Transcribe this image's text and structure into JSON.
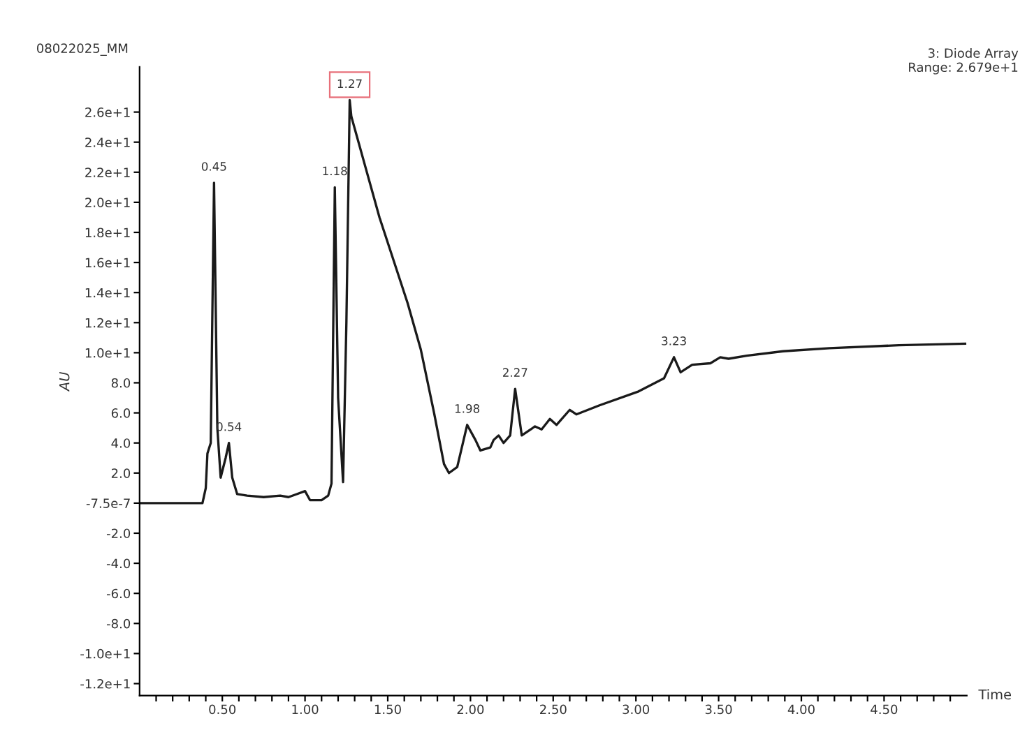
{
  "chart_data": {
    "type": "line",
    "xlabel": "Time",
    "ylabel": "AU",
    "annotations": [
      {
        "text": "08022025_MM"
      },
      {
        "text": "3: Diode Array\nRange: 2.679e+1"
      },
      {
        "text": "0.45",
        "x": 0.45,
        "y": 21.3
      },
      {
        "text": "0.54",
        "x": 0.54,
        "y": 4.0
      },
      {
        "text": "1.18",
        "x": 1.18,
        "y": 21.0
      },
      {
        "text": "1.27",
        "x": 1.27,
        "y": 26.8
      },
      {
        "text": "1.98",
        "x": 1.98,
        "y": 5.2
      },
      {
        "text": "2.27",
        "x": 2.27,
        "y": 7.6
      },
      {
        "text": "3.23",
        "x": 3.23,
        "y": 9.7
      }
    ],
    "x": [
      0.0,
      0.38,
      0.4,
      0.41,
      0.43,
      0.45,
      0.47,
      0.49,
      0.52,
      0.54,
      0.56,
      0.59,
      0.65,
      0.75,
      0.85,
      0.9,
      0.95,
      1.0,
      1.03,
      1.1,
      1.14,
      1.16,
      1.18,
      1.2,
      1.23,
      1.25,
      1.27,
      1.28,
      1.45,
      1.62,
      1.7,
      1.78,
      1.84,
      1.87,
      1.92,
      1.98,
      2.03,
      2.06,
      2.12,
      2.14,
      2.17,
      2.2,
      2.24,
      2.27,
      2.31,
      2.39,
      2.43,
      2.48,
      2.52,
      2.6,
      2.64,
      2.78,
      3.01,
      3.17,
      3.23,
      3.27,
      3.34,
      3.45,
      3.51,
      3.56,
      3.67,
      3.89,
      4.17,
      4.59,
      4.99
    ],
    "series": [
      {
        "color": "#1a1a1a",
        "values": [
          0.0,
          0.0,
          1.0,
          3.3,
          4.0,
          21.3,
          5.0,
          1.7,
          3.0,
          4.0,
          1.7,
          0.6,
          0.5,
          0.4,
          0.5,
          0.4,
          0.6,
          0.8,
          0.2,
          0.2,
          0.5,
          1.3,
          21.0,
          7.0,
          1.4,
          12.0,
          26.8,
          25.7,
          19.0,
          13.3,
          10.2,
          6.0,
          2.6,
          2.0,
          2.4,
          5.2,
          4.2,
          3.5,
          3.7,
          4.2,
          4.5,
          4.0,
          4.5,
          7.6,
          4.5,
          5.1,
          4.9,
          5.6,
          5.2,
          6.2,
          5.9,
          6.5,
          7.4,
          8.3,
          9.7,
          8.7,
          9.2,
          9.3,
          9.7,
          9.6,
          9.8,
          10.1,
          10.3,
          10.5,
          10.6
        ]
      }
    ],
    "xlim": [
      0.0,
      5.0
    ],
    "xticks": [
      {
        "value": 0.1,
        "label": null
      },
      {
        "value": 0.2,
        "label": null
      },
      {
        "value": 0.3,
        "label": null
      },
      {
        "value": 0.4,
        "label": null
      },
      {
        "value": 0.5,
        "label": "0.50"
      },
      {
        "value": 0.6,
        "label": null
      },
      {
        "value": 0.7,
        "label": null
      },
      {
        "value": 0.8,
        "label": null
      },
      {
        "value": 0.9,
        "label": null
      },
      {
        "value": 1.0,
        "label": "1.00"
      },
      {
        "value": 1.1,
        "label": null
      },
      {
        "value": 1.2,
        "label": null
      },
      {
        "value": 1.3,
        "label": null
      },
      {
        "value": 1.4,
        "label": null
      },
      {
        "value": 1.5,
        "label": "1.50"
      },
      {
        "value": 1.6,
        "label": null
      },
      {
        "value": 1.7,
        "label": null
      },
      {
        "value": 1.8,
        "label": null
      },
      {
        "value": 1.9,
        "label": null
      },
      {
        "value": 2.0,
        "label": "2.00"
      },
      {
        "value": 2.1,
        "label": null
      },
      {
        "value": 2.2,
        "label": null
      },
      {
        "value": 2.3,
        "label": null
      },
      {
        "value": 2.4,
        "label": null
      },
      {
        "value": 2.5,
        "label": "2.50"
      },
      {
        "value": 2.6,
        "label": null
      },
      {
        "value": 2.7,
        "label": null
      },
      {
        "value": 2.8,
        "label": null
      },
      {
        "value": 2.9,
        "label": null
      },
      {
        "value": 3.0,
        "label": "3.00"
      },
      {
        "value": 3.1,
        "label": null
      },
      {
        "value": 3.2,
        "label": null
      },
      {
        "value": 3.3,
        "label": null
      },
      {
        "value": 3.4,
        "label": null
      },
      {
        "value": 3.5,
        "label": "3.50"
      },
      {
        "value": 3.6,
        "label": null
      },
      {
        "value": 3.7,
        "label": null
      },
      {
        "value": 3.8,
        "label": null
      },
      {
        "value": 3.9,
        "label": null
      },
      {
        "value": 4.0,
        "label": "4.00"
      },
      {
        "value": 4.1,
        "label": null
      },
      {
        "value": 4.2,
        "label": null
      },
      {
        "value": 4.3,
        "label": null
      },
      {
        "value": 4.4,
        "label": null
      },
      {
        "value": 4.5,
        "label": "4.50"
      },
      {
        "value": 4.6,
        "label": null
      },
      {
        "value": 4.7,
        "label": null
      },
      {
        "value": 4.8,
        "label": null
      },
      {
        "value": 4.9,
        "label": null
      }
    ],
    "ylim": [
      -12.8,
      29.0
    ],
    "yticks": [
      {
        "value": 26,
        "label": "2.6e+1"
      },
      {
        "value": 24,
        "label": "2.4e+1"
      },
      {
        "value": 22,
        "label": "2.2e+1"
      },
      {
        "value": 20,
        "label": "2.0e+1"
      },
      {
        "value": 18,
        "label": "1.8e+1"
      },
      {
        "value": 16,
        "label": "1.6e+1"
      },
      {
        "value": 14,
        "label": "1.4e+1"
      },
      {
        "value": 12,
        "label": "1.2e+1"
      },
      {
        "value": 10,
        "label": "1.0e+1"
      },
      {
        "value": 8,
        "label": "8.0"
      },
      {
        "value": 6,
        "label": "6.0"
      },
      {
        "value": 4,
        "label": "4.0"
      },
      {
        "value": 2,
        "label": "2.0"
      },
      {
        "value": -7.5e-07,
        "label": "-7.5e-7"
      },
      {
        "value": -2,
        "label": "-2.0"
      },
      {
        "value": -4,
        "label": "-4.0"
      },
      {
        "value": -6,
        "label": "-6.0"
      },
      {
        "value": -8,
        "label": "-8.0"
      },
      {
        "value": -10,
        "label": "-1.0e+1"
      },
      {
        "value": -12,
        "label": "-1.2e+1"
      }
    ],
    "grid": false,
    "marker": "none",
    "line_style": "solid"
  }
}
